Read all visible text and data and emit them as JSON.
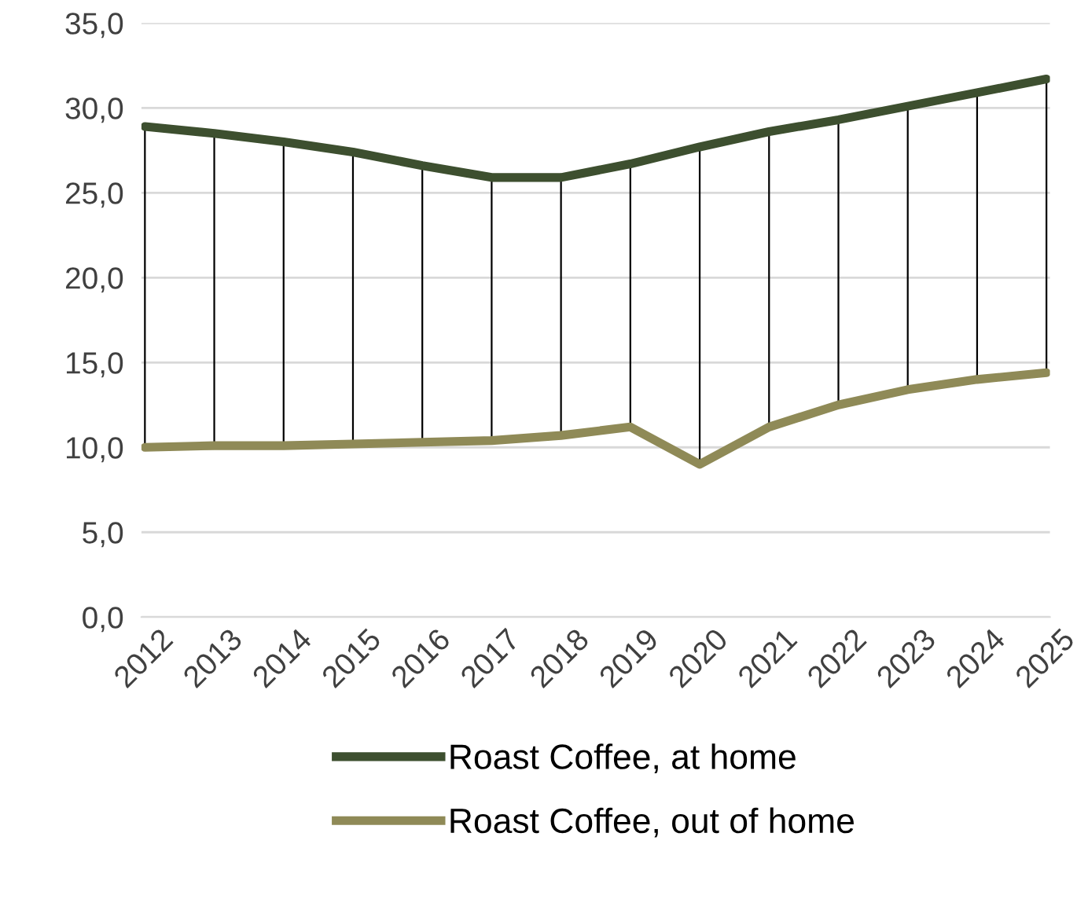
{
  "chart_data": {
    "type": "line",
    "categories": [
      "2012",
      "2013",
      "2014",
      "2015",
      "2016",
      "2017",
      "2018",
      "2019",
      "2020",
      "2021",
      "2022",
      "2023",
      "2024",
      "2025"
    ],
    "series": [
      {
        "name": "Roast Coffee, at home",
        "color": "#3d4f2f",
        "values": [
          28.9,
          28.5,
          28.0,
          27.4,
          26.6,
          25.9,
          25.9,
          26.7,
          27.7,
          28.6,
          29.3,
          30.1,
          30.9,
          31.7
        ]
      },
      {
        "name": "Roast Coffee, out of home",
        "color": "#8f8a57",
        "values": [
          10.0,
          10.1,
          10.1,
          10.2,
          10.3,
          10.4,
          10.7,
          11.2,
          9.0,
          11.2,
          12.5,
          13.4,
          14.0,
          14.4
        ],
        "errors": [
          [
            10.0,
            28.9
          ],
          [
            10.1,
            28.5
          ],
          [
            10.1,
            28.0
          ],
          [
            10.2,
            27.4
          ],
          [
            10.3,
            26.6
          ],
          [
            10.4,
            25.9
          ],
          [
            10.7,
            25.9
          ],
          [
            11.2,
            26.7
          ],
          [
            9.0,
            27.7
          ],
          [
            11.2,
            28.6
          ],
          [
            12.5,
            29.3
          ],
          [
            13.4,
            30.1
          ],
          [
            14.0,
            30.9
          ],
          [
            14.4,
            31.7
          ]
        ]
      }
    ],
    "ylim": [
      0,
      35
    ],
    "yticks": [
      {
        "value": 0,
        "label": "0,0"
      },
      {
        "value": 5,
        "label": "5,0"
      },
      {
        "value": 10,
        "label": "10,0"
      },
      {
        "value": 15,
        "label": "15,0"
      },
      {
        "value": 20,
        "label": "20,0"
      },
      {
        "value": 25,
        "label": "25,0"
      },
      {
        "value": 30,
        "label": "30,0"
      },
      {
        "value": 35,
        "label": "35,0"
      }
    ],
    "grid": "y",
    "legend": "bottom",
    "marker": "none",
    "line_style": "solid"
  }
}
